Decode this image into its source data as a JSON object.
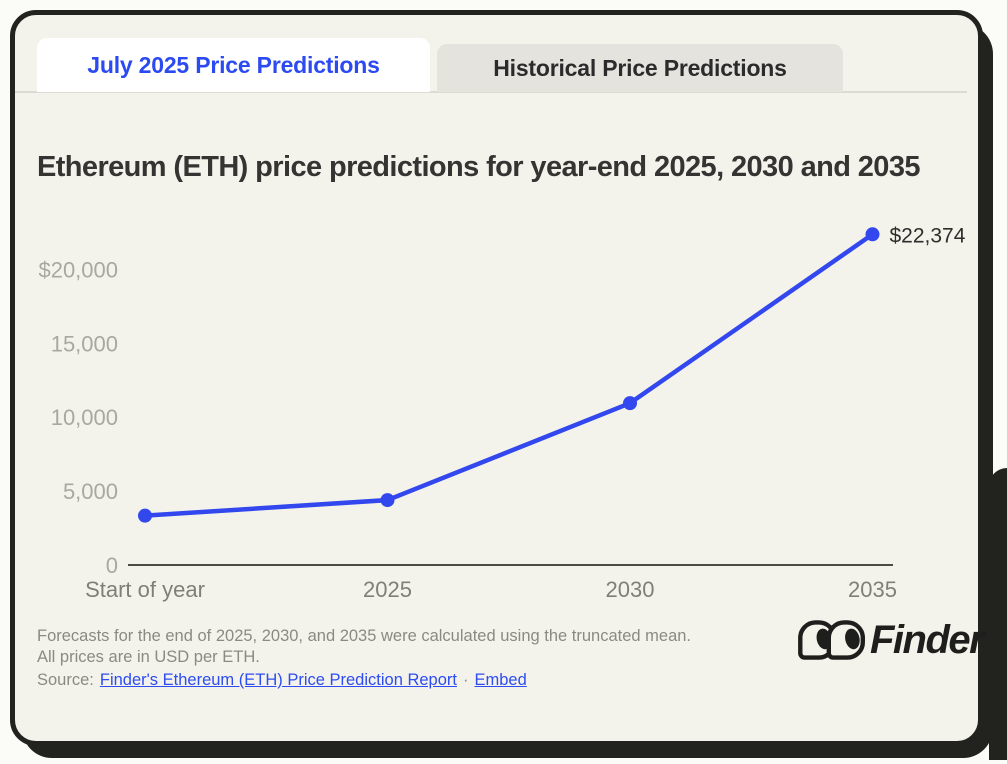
{
  "tabs": {
    "items": [
      {
        "label": "July 2025 Price Predictions",
        "active": true
      },
      {
        "label": "Historical Price Predictions",
        "active": false
      }
    ]
  },
  "title": "Ethereum (ETH) price predictions for year-end 2025, 2030 and 2035",
  "chart_data": {
    "type": "line",
    "categories": [
      "Start of year",
      "2025",
      "2030",
      "2035"
    ],
    "values": [
      3337,
      4392,
      10950,
      22374
    ],
    "point_label": {
      "index": 3,
      "text": "$22,374"
    },
    "y_ticks": [
      {
        "label": "$20,000",
        "value": 20000
      },
      {
        "label": "15,000",
        "value": 15000
      },
      {
        "label": "10,000",
        "value": 10000
      },
      {
        "label": "5,000",
        "value": 5000
      },
      {
        "label": "0",
        "value": 0
      }
    ],
    "ylim": [
      0,
      24000
    ],
    "grid": false,
    "legend": false,
    "line_color": "#3247ed",
    "dot_color": "#3247ed",
    "axis_color": "#4a4a46",
    "y_tick_color": "#a8a8a2",
    "x_tick_color": "#7f7f79",
    "point_label_color": "#2d2d2b"
  },
  "footer": {
    "note": "Forecasts for the end of 2025, 2030, and 2035 were calculated using the truncated mean. All prices are in USD per ETH.",
    "source_prefix": "Source:",
    "source_link": "Finder's Ethereum (ETH) Price Prediction Report",
    "separator": "·",
    "embed_link": "Embed",
    "logo_text": "Finder"
  },
  "colors": {
    "accent_blue": "#2b4af2",
    "card_background": "#f4f3eb",
    "card_border": "#22221f",
    "inactive_tab": "#e4e3de"
  }
}
